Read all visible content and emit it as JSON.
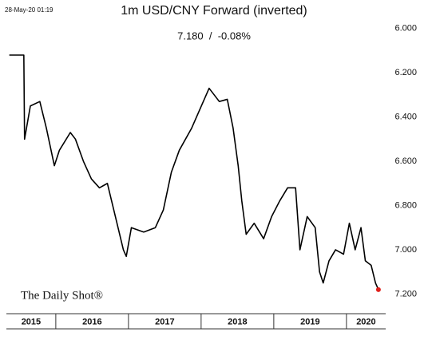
{
  "chart_data": {
    "type": "line",
    "title": "1m USD/CNY Forward (inverted)",
    "subtitle": "7.180  /  -0.08%",
    "timestamp": "28-May-20 01:19",
    "watermark": "The Daily Shot®",
    "color": "#000000",
    "last_point_color": "#e0201b",
    "inverted_y": true,
    "x": [
      2015.36,
      2015.56,
      2015.57,
      2015.65,
      2015.78,
      2015.87,
      2015.98,
      2016.05,
      2016.2,
      2016.27,
      2016.38,
      2016.49,
      2016.6,
      2016.71,
      2016.82,
      2016.93,
      2016.97,
      2017.04,
      2017.21,
      2017.37,
      2017.48,
      2017.59,
      2017.7,
      2017.87,
      2018.03,
      2018.11,
      2018.25,
      2018.36,
      2018.44,
      2018.51,
      2018.56,
      2018.62,
      2018.73,
      2018.86,
      2018.97,
      2019.08,
      2019.19,
      2019.3,
      2019.36,
      2019.46,
      2019.57,
      2019.63,
      2019.68,
      2019.76,
      2019.85,
      2019.96,
      2020.04,
      2020.12,
      2020.2,
      2020.26,
      2020.34,
      2020.4,
      2020.44
    ],
    "values": [
      6.12,
      6.12,
      6.5,
      6.35,
      6.33,
      6.45,
      6.62,
      6.55,
      6.47,
      6.5,
      6.6,
      6.68,
      6.72,
      6.7,
      6.85,
      7.0,
      7.03,
      6.9,
      6.92,
      6.9,
      6.82,
      6.65,
      6.55,
      6.45,
      6.33,
      6.27,
      6.33,
      6.32,
      6.45,
      6.62,
      6.78,
      6.93,
      6.88,
      6.95,
      6.85,
      6.78,
      6.72,
      6.72,
      7.0,
      6.85,
      6.9,
      7.1,
      7.15,
      7.05,
      7.0,
      7.02,
      6.88,
      7.0,
      6.9,
      7.05,
      7.07,
      7.15,
      7.18
    ],
    "xlim": [
      2015.32,
      2020.54
    ],
    "xticks": [
      2015,
      2016,
      2017,
      2018,
      2019,
      2020
    ],
    "ylim": [
      5.9,
      7.26
    ],
    "yticks": [
      {
        "value": 6.0,
        "label": "6.000"
      },
      {
        "value": 6.2,
        "label": "6.200"
      },
      {
        "value": 6.4,
        "label": "6.400"
      },
      {
        "value": 6.6,
        "label": "6.600"
      },
      {
        "value": 6.8,
        "label": "6.800"
      },
      {
        "value": 7.0,
        "label": "7.000"
      },
      {
        "value": 7.2,
        "label": "7.200"
      }
    ]
  }
}
